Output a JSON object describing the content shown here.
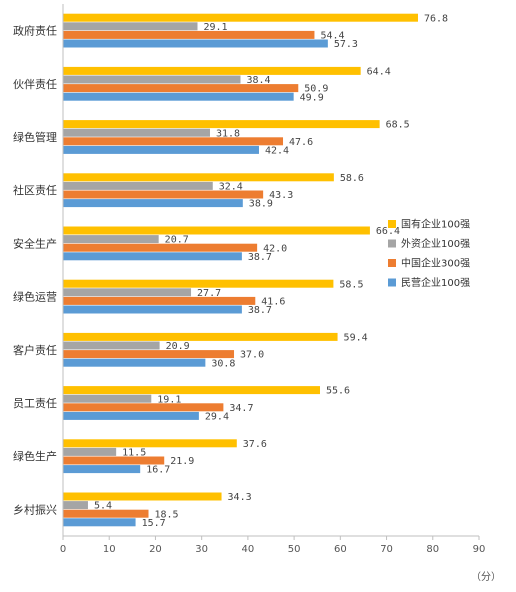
{
  "chart_data": {
    "type": "bar",
    "orientation": "horizontal",
    "categories": [
      "政府责任",
      "伙伴责任",
      "绿色管理",
      "社区责任",
      "安全生产",
      "绿色运营",
      "客户责任",
      "员工责任",
      "绿色生产",
      "乡村振兴"
    ],
    "series": [
      {
        "name": "国有企业100强",
        "color": "#FFC000",
        "values": [
          76.8,
          64.4,
          68.5,
          58.6,
          66.4,
          58.5,
          59.4,
          55.6,
          37.6,
          34.3
        ]
      },
      {
        "name": "外资企业100强",
        "color": "#A5A5A5",
        "values": [
          29.1,
          38.4,
          31.8,
          32.4,
          20.7,
          27.7,
          20.9,
          19.1,
          11.5,
          5.4
        ]
      },
      {
        "name": "中国企业300强",
        "color": "#ED7D31",
        "values": [
          54.4,
          50.9,
          47.6,
          43.3,
          42.0,
          41.6,
          37.0,
          34.7,
          21.9,
          18.5
        ]
      },
      {
        "name": "民营企业100强",
        "color": "#5B9BD5",
        "values": [
          57.3,
          49.9,
          42.4,
          38.9,
          38.7,
          38.7,
          30.8,
          29.4,
          16.7,
          15.7
        ]
      }
    ],
    "legend_order": [
      0,
      1,
      2,
      3
    ],
    "xlim": [
      0,
      90
    ],
    "xticks": [
      0,
      10,
      20,
      30,
      40,
      50,
      60,
      70,
      80,
      90
    ],
    "xlabel": "（分）",
    "grid": false,
    "legend_position": "right"
  }
}
